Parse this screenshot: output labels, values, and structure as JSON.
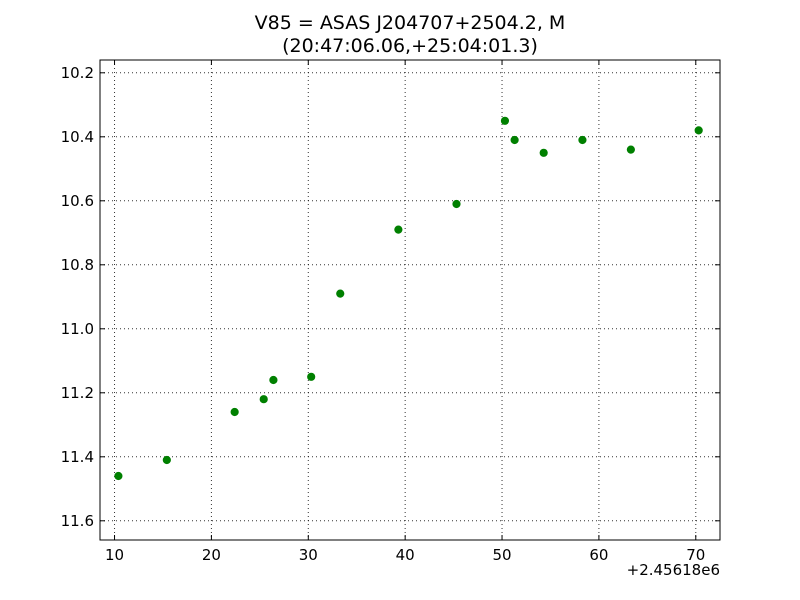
{
  "chart_data": {
    "type": "scatter",
    "title_lines": [
      "V85 = ASAS J204707+2504.2, M",
      "(20:47:06.06,+25:04:01.3)"
    ],
    "x_offset_label": "+2.45618e6",
    "xlim": [
      8.5,
      72.5
    ],
    "ylim": [
      11.66,
      10.16
    ],
    "y_inverted": true,
    "x_ticks": [
      10,
      20,
      30,
      40,
      50,
      60,
      70
    ],
    "x_tick_labels": [
      "10",
      "20",
      "30",
      "40",
      "50",
      "60",
      "70"
    ],
    "y_ticks": [
      10.2,
      10.4,
      10.6,
      10.8,
      11.0,
      11.2,
      11.4,
      11.6
    ],
    "y_tick_labels": [
      "10.2",
      "10.4",
      "10.6",
      "10.8",
      "11.0",
      "11.2",
      "11.4",
      "11.6"
    ],
    "grid": true,
    "marker_color": "#008000",
    "points": [
      {
        "x": 10.4,
        "y": 11.46
      },
      {
        "x": 15.4,
        "y": 11.41
      },
      {
        "x": 22.4,
        "y": 11.26
      },
      {
        "x": 25.4,
        "y": 11.22
      },
      {
        "x": 26.4,
        "y": 11.16
      },
      {
        "x": 30.3,
        "y": 11.15
      },
      {
        "x": 33.3,
        "y": 10.89
      },
      {
        "x": 39.3,
        "y": 10.69
      },
      {
        "x": 45.3,
        "y": 10.61
      },
      {
        "x": 50.3,
        "y": 10.35
      },
      {
        "x": 51.3,
        "y": 10.41
      },
      {
        "x": 54.3,
        "y": 10.45
      },
      {
        "x": 58.3,
        "y": 10.41
      },
      {
        "x": 63.3,
        "y": 10.44
      },
      {
        "x": 70.3,
        "y": 10.38
      }
    ]
  }
}
